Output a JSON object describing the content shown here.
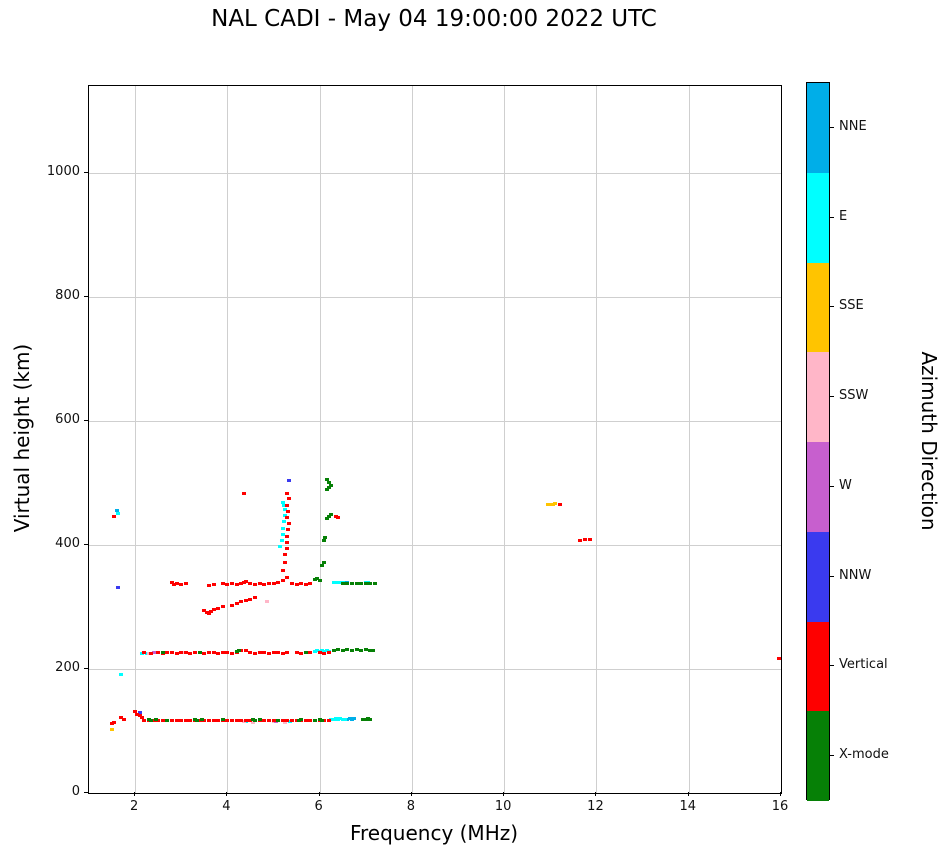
{
  "chart_data": {
    "type": "scatter",
    "title": "NAL CADI - May 04 19:00:00 2022 UTC",
    "xlabel": "Frequency (MHz)",
    "ylabel": "Virtual height (km)",
    "colorbar_label": "Azimuth Direction",
    "xlim": [
      1,
      16
    ],
    "ylim": [
      0,
      1140
    ],
    "x_ticks": [
      2,
      4,
      6,
      8,
      10,
      12,
      14,
      16
    ],
    "y_ticks": [
      0,
      200,
      400,
      600,
      800,
      1000
    ],
    "grid": true,
    "legend_position": "right-colorbar",
    "categories": [
      {
        "label": "NNE",
        "color": "#00aee8"
      },
      {
        "label": "E",
        "color": "#00ffff"
      },
      {
        "label": "SSE",
        "color": "#ffc400"
      },
      {
        "label": "SSW",
        "color": "#ffb6c8"
      },
      {
        "label": "W",
        "color": "#c75fce"
      },
      {
        "label": "NNW",
        "color": "#3a3aef"
      },
      {
        "label": "Vertical",
        "color": "#fe0000"
      },
      {
        "label": "X-mode",
        "color": "#068006"
      }
    ],
    "series": [
      {
        "name": "NNE",
        "points": [
          [
            6.6,
            120
          ],
          [
            6.65,
            121
          ],
          [
            6.7,
            120
          ],
          [
            6.75,
            121
          ],
          [
            1.6,
            456
          ],
          [
            6.55,
            341
          ],
          [
            6.6,
            340
          ]
        ]
      },
      {
        "name": "E",
        "points": [
          [
            6.25,
            120
          ],
          [
            6.3,
            120
          ],
          [
            6.35,
            121
          ],
          [
            6.4,
            120
          ],
          [
            6.45,
            121
          ],
          [
            6.5,
            120
          ],
          [
            6.55,
            120
          ],
          [
            4.4,
            116
          ],
          [
            4.9,
            117
          ],
          [
            5.35,
            116
          ],
          [
            5.9,
            229
          ],
          [
            5.95,
            230
          ],
          [
            6.0,
            229
          ],
          [
            6.05,
            230
          ],
          [
            6.1,
            229
          ],
          [
            6.15,
            230
          ],
          [
            6.2,
            229
          ],
          [
            2.15,
            225
          ],
          [
            2.25,
            226
          ],
          [
            6.3,
            340
          ],
          [
            6.35,
            341
          ],
          [
            6.4,
            340
          ],
          [
            6.45,
            341
          ],
          [
            6.5,
            340
          ],
          [
            7.0,
            340
          ],
          [
            7.05,
            341
          ],
          [
            5.15,
            398
          ],
          [
            5.18,
            408
          ],
          [
            5.2,
            418
          ],
          [
            5.2,
            428
          ],
          [
            5.22,
            438
          ],
          [
            5.25,
            448
          ],
          [
            5.25,
            458
          ],
          [
            5.22,
            465
          ],
          [
            5.2,
            470
          ],
          [
            1.62,
            452
          ],
          [
            1.7,
            192
          ]
        ]
      },
      {
        "name": "SSE",
        "points": [
          [
            1.5,
            103
          ],
          [
            10.95,
            466
          ],
          [
            11.0,
            466
          ],
          [
            11.05,
            466
          ],
          [
            11.1,
            467
          ]
        ]
      },
      {
        "name": "SSW",
        "points": [
          [
            4.35,
            116
          ],
          [
            4.55,
            115
          ],
          [
            5.0,
            116
          ],
          [
            5.25,
            115
          ],
          [
            2.3,
            226
          ],
          [
            3.05,
            228
          ],
          [
            4.85,
            310
          ]
        ]
      },
      {
        "name": "W",
        "points": [
          [
            4.75,
            117
          ],
          [
            5.05,
            116
          ],
          [
            2.4,
            227
          ]
        ]
      },
      {
        "name": "NNW",
        "points": [
          [
            1.62,
            332
          ],
          [
            5.33,
            505
          ],
          [
            2.1,
            131
          ]
        ]
      },
      {
        "name": "Vertical",
        "points": [
          [
            1.5,
            113
          ],
          [
            1.55,
            115
          ],
          [
            1.55,
            447
          ],
          [
            1.7,
            122
          ],
          [
            1.75,
            120
          ],
          [
            2.0,
            133
          ],
          [
            2.05,
            128
          ],
          [
            2.1,
            126
          ],
          [
            2.15,
            122
          ],
          [
            2.2,
            117
          ],
          [
            2.3,
            118
          ],
          [
            2.4,
            117
          ],
          [
            2.5,
            117
          ],
          [
            2.6,
            118
          ],
          [
            2.7,
            117
          ],
          [
            2.8,
            117
          ],
          [
            2.9,
            118
          ],
          [
            3.0,
            117
          ],
          [
            3.1,
            117
          ],
          [
            3.2,
            118
          ],
          [
            3.3,
            117
          ],
          [
            3.4,
            117
          ],
          [
            3.5,
            118
          ],
          [
            3.6,
            117
          ],
          [
            3.7,
            117
          ],
          [
            3.8,
            118
          ],
          [
            3.9,
            117
          ],
          [
            4.0,
            117
          ],
          [
            4.1,
            118
          ],
          [
            4.2,
            117
          ],
          [
            4.3,
            117
          ],
          [
            4.4,
            118
          ],
          [
            4.5,
            117
          ],
          [
            4.6,
            117
          ],
          [
            4.7,
            118
          ],
          [
            4.8,
            117
          ],
          [
            4.9,
            117
          ],
          [
            5.0,
            118
          ],
          [
            5.1,
            117
          ],
          [
            5.2,
            117
          ],
          [
            5.3,
            118
          ],
          [
            5.4,
            117
          ],
          [
            5.5,
            117
          ],
          [
            5.6,
            118
          ],
          [
            5.7,
            117
          ],
          [
            5.8,
            117
          ],
          [
            5.9,
            118
          ],
          [
            6.0,
            117
          ],
          [
            6.1,
            117
          ],
          [
            6.2,
            117
          ],
          [
            2.2,
            228
          ],
          [
            2.35,
            226
          ],
          [
            2.5,
            227
          ],
          [
            2.6,
            226
          ],
          [
            2.7,
            227
          ],
          [
            2.8,
            227
          ],
          [
            2.9,
            226
          ],
          [
            3.0,
            227
          ],
          [
            3.1,
            227
          ],
          [
            3.2,
            226
          ],
          [
            3.3,
            227
          ],
          [
            3.4,
            227
          ],
          [
            3.5,
            226
          ],
          [
            3.6,
            227
          ],
          [
            3.7,
            227
          ],
          [
            3.8,
            226
          ],
          [
            3.9,
            227
          ],
          [
            4.0,
            227
          ],
          [
            4.1,
            226
          ],
          [
            4.2,
            227
          ],
          [
            4.3,
            230
          ],
          [
            4.4,
            231
          ],
          [
            4.5,
            227
          ],
          [
            4.6,
            226
          ],
          [
            4.7,
            227
          ],
          [
            4.8,
            227
          ],
          [
            4.9,
            226
          ],
          [
            5.0,
            227
          ],
          [
            5.1,
            227
          ],
          [
            5.2,
            226
          ],
          [
            5.3,
            227
          ],
          [
            5.5,
            227
          ],
          [
            5.6,
            226
          ],
          [
            5.8,
            227
          ],
          [
            6.0,
            227
          ],
          [
            6.1,
            226
          ],
          [
            6.2,
            227
          ],
          [
            2.8,
            340
          ],
          [
            2.85,
            337
          ],
          [
            2.9,
            338
          ],
          [
            3.0,
            337
          ],
          [
            3.1,
            338
          ],
          [
            3.6,
            336
          ],
          [
            3.7,
            337
          ],
          [
            3.9,
            338
          ],
          [
            4.0,
            337
          ],
          [
            4.1,
            338
          ],
          [
            4.2,
            337
          ],
          [
            4.3,
            338
          ],
          [
            4.35,
            340
          ],
          [
            4.4,
            342
          ],
          [
            4.5,
            338
          ],
          [
            4.6,
            337
          ],
          [
            4.7,
            338
          ],
          [
            4.8,
            337
          ],
          [
            4.9,
            338
          ],
          [
            5.0,
            339
          ],
          [
            5.1,
            341
          ],
          [
            5.2,
            344
          ],
          [
            5.3,
            349
          ],
          [
            5.4,
            338
          ],
          [
            5.5,
            337
          ],
          [
            5.6,
            338
          ],
          [
            5.7,
            337
          ],
          [
            5.8,
            338
          ],
          [
            3.5,
            295
          ],
          [
            3.55,
            292
          ],
          [
            3.6,
            291
          ],
          [
            3.65,
            293
          ],
          [
            3.7,
            296
          ],
          [
            3.8,
            298
          ],
          [
            3.9,
            301
          ],
          [
            4.1,
            303
          ],
          [
            4.2,
            306
          ],
          [
            4.3,
            309
          ],
          [
            4.4,
            311
          ],
          [
            4.5,
            313
          ],
          [
            4.6,
            316
          ],
          [
            5.2,
            360
          ],
          [
            5.25,
            372
          ],
          [
            5.25,
            385
          ],
          [
            5.3,
            395
          ],
          [
            5.3,
            405
          ],
          [
            5.3,
            415
          ],
          [
            5.32,
            425
          ],
          [
            5.33,
            435
          ],
          [
            5.3,
            445
          ],
          [
            5.32,
            455
          ],
          [
            5.3,
            465
          ],
          [
            5.33,
            475
          ],
          [
            5.3,
            483
          ],
          [
            4.35,
            483
          ],
          [
            6.35,
            447
          ],
          [
            6.4,
            445
          ],
          [
            11.2,
            466
          ],
          [
            11.65,
            408
          ],
          [
            11.75,
            410
          ],
          [
            11.85,
            409
          ],
          [
            15.95,
            218
          ]
        ]
      },
      {
        "name": "X-mode",
        "points": [
          [
            2.3,
            119
          ],
          [
            2.35,
            118
          ],
          [
            2.45,
            119
          ],
          [
            2.7,
            118
          ],
          [
            3.3,
            119
          ],
          [
            3.35,
            118
          ],
          [
            3.45,
            119
          ],
          [
            3.9,
            119
          ],
          [
            4.55,
            119
          ],
          [
            4.6,
            118
          ],
          [
            4.7,
            119
          ],
          [
            5.1,
            118
          ],
          [
            5.55,
            118
          ],
          [
            5.6,
            119
          ],
          [
            5.9,
            118
          ],
          [
            6.0,
            119
          ],
          [
            6.05,
            118
          ],
          [
            6.95,
            120
          ],
          [
            7.0,
            120
          ],
          [
            7.05,
            121
          ],
          [
            7.1,
            120
          ],
          [
            2.6,
            228
          ],
          [
            3.4,
            228
          ],
          [
            4.2,
            229
          ],
          [
            4.25,
            230
          ],
          [
            5.7,
            228
          ],
          [
            6.3,
            231
          ],
          [
            6.4,
            232
          ],
          [
            6.5,
            231
          ],
          [
            6.6,
            232
          ],
          [
            6.7,
            231
          ],
          [
            6.8,
            232
          ],
          [
            6.9,
            231
          ],
          [
            7.0,
            232
          ],
          [
            7.1,
            231
          ],
          [
            7.15,
            230
          ],
          [
            5.9,
            345
          ],
          [
            5.95,
            347
          ],
          [
            6.0,
            344
          ],
          [
            6.5,
            339
          ],
          [
            6.6,
            338
          ],
          [
            6.7,
            339
          ],
          [
            6.8,
            338
          ],
          [
            6.9,
            339
          ],
          [
            7.0,
            338
          ],
          [
            7.1,
            339
          ],
          [
            7.2,
            338
          ],
          [
            6.05,
            368
          ],
          [
            6.1,
            372
          ],
          [
            6.1,
            408
          ],
          [
            6.12,
            412
          ],
          [
            6.15,
            443
          ],
          [
            6.2,
            447
          ],
          [
            6.25,
            450
          ],
          [
            6.15,
            490
          ],
          [
            6.2,
            494
          ],
          [
            6.25,
            497
          ],
          [
            6.2,
            502
          ],
          [
            6.15,
            507
          ]
        ]
      }
    ]
  }
}
